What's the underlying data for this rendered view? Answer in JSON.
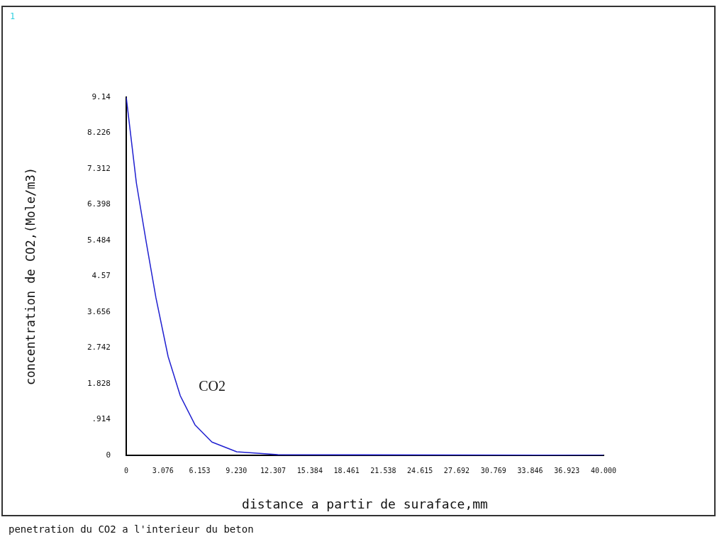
{
  "chart_data": {
    "type": "line",
    "xlabel": "distance a partir de suraface,mm",
    "ylabel": "concentration de CO2,(Mole/m3)",
    "annotations": [
      "1",
      "penetration du CO2 a l'interieur du beton"
    ],
    "x": [
      0,
      0.85,
      1.67,
      2.49,
      3.51,
      4.53,
      5.76,
      7.18,
      9.26,
      12.7,
      40
    ],
    "series": [
      {
        "name": "CO2",
        "color": "#2020d0",
        "values": [
          9.14,
          6.95,
          5.45,
          4.02,
          2.52,
          1.52,
          0.78,
          0.34,
          0.09,
          0.02,
          0
        ]
      }
    ],
    "xlim": [
      0,
      40
    ],
    "xticks": [
      0,
      3.076,
      6.153,
      {
        "value": 9.23,
        "label": "9.230"
      },
      12.307,
      15.384,
      18.461,
      21.538,
      24.615,
      27.692,
      30.769,
      33.846,
      36.923,
      {
        "value": 40,
        "label": "40.000"
      }
    ],
    "ylim": [
      0,
      9.14
    ],
    "yticks": [
      0,
      {
        "value": 0.914,
        "label": ".914"
      },
      1.828,
      2.742,
      3.656,
      4.57,
      5.484,
      6.398,
      7.312,
      8.226,
      9.14
    ],
    "grid": false,
    "marker": "none",
    "line_style": "solid",
    "legend": false
  }
}
